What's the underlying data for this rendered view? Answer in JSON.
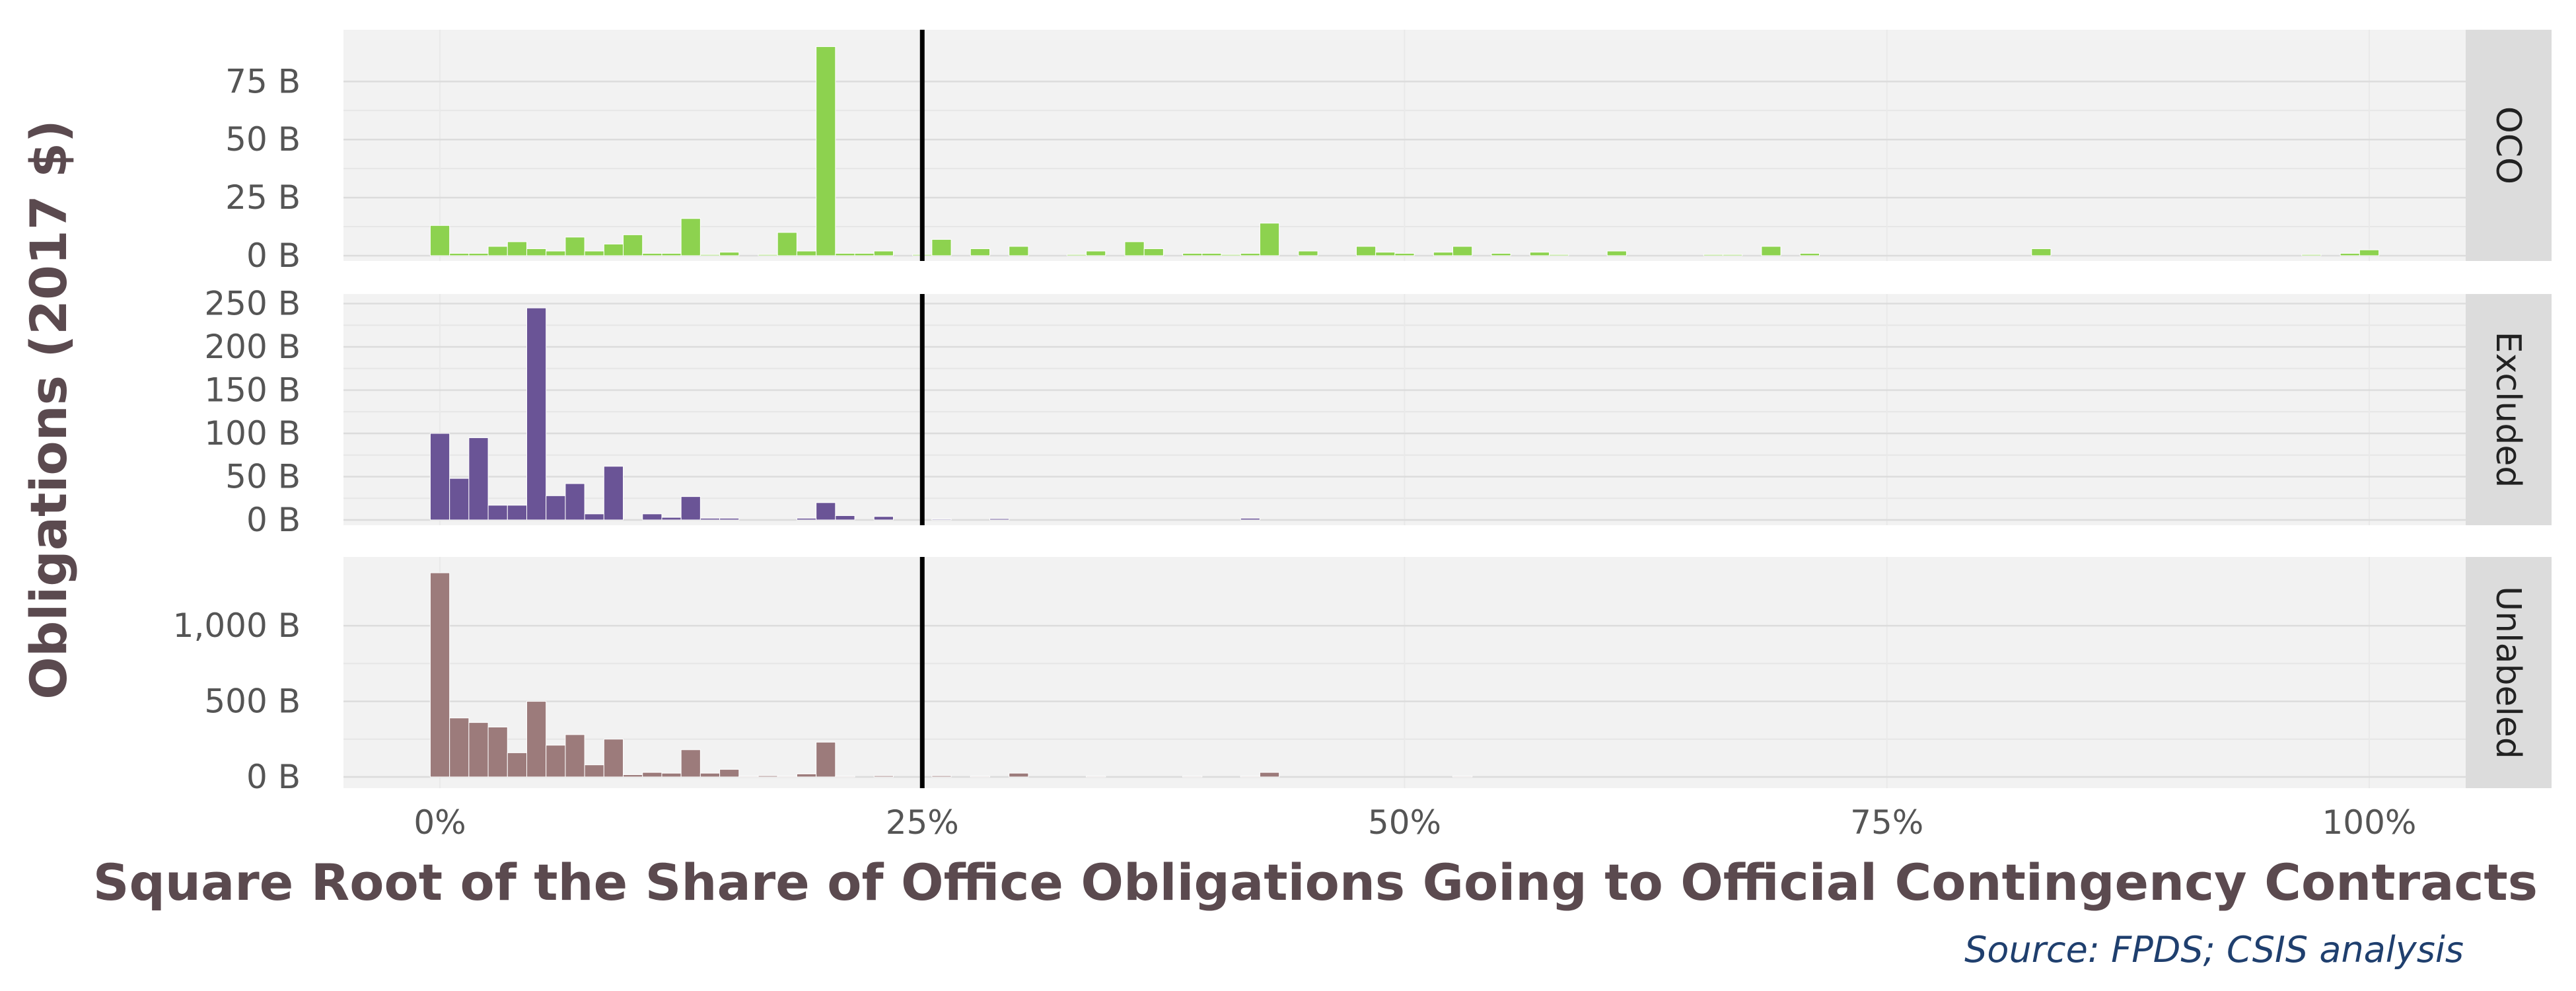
{
  "chart_data": {
    "type": "bar",
    "xlabel": "Square Root of the Share of Office Obligations Going to Official Contingency Contracts",
    "ylabel": "Obligations (2017 $)",
    "source": "Source: FPDS; CSIS analysis",
    "x_ticks": [
      0,
      25,
      50,
      75,
      100
    ],
    "x_tick_labels": [
      "0%",
      "25%",
      "50%",
      "75%",
      "100%"
    ],
    "xlim": [
      -5,
      105
    ],
    "bin_width": 1,
    "reference_line": {
      "x": 25,
      "color": "#000000"
    },
    "grid": true,
    "panels": [
      {
        "name": "OCO",
        "strip_label": "OCO",
        "color": "#8dd24f",
        "ylim": [
          0,
          95
        ],
        "y_ticks": [
          0,
          25,
          50,
          75
        ],
        "y_tick_labels": [
          "0 B",
          "25 B",
          "50 B",
          "75 B"
        ],
        "bars": [
          {
            "x": 0,
            "y": 13
          },
          {
            "x": 1,
            "y": 1
          },
          {
            "x": 2,
            "y": 1
          },
          {
            "x": 3,
            "y": 4
          },
          {
            "x": 4,
            "y": 6
          },
          {
            "x": 5,
            "y": 3
          },
          {
            "x": 6,
            "y": 2
          },
          {
            "x": 7,
            "y": 8
          },
          {
            "x": 8,
            "y": 2
          },
          {
            "x": 9,
            "y": 5
          },
          {
            "x": 10,
            "y": 9
          },
          {
            "x": 11,
            "y": 1
          },
          {
            "x": 12,
            "y": 1
          },
          {
            "x": 13,
            "y": 16
          },
          {
            "x": 14,
            "y": 0.5
          },
          {
            "x": 15,
            "y": 1.5
          },
          {
            "x": 17,
            "y": 0.5
          },
          {
            "x": 18,
            "y": 10
          },
          {
            "x": 19,
            "y": 2
          },
          {
            "x": 20,
            "y": 90
          },
          {
            "x": 21,
            "y": 1
          },
          {
            "x": 22,
            "y": 1
          },
          {
            "x": 23,
            "y": 2
          },
          {
            "x": 25,
            "y": 0.5
          },
          {
            "x": 26,
            "y": 7
          },
          {
            "x": 28,
            "y": 3
          },
          {
            "x": 30,
            "y": 4
          },
          {
            "x": 33,
            "y": 0.5
          },
          {
            "x": 34,
            "y": 2
          },
          {
            "x": 36,
            "y": 6
          },
          {
            "x": 37,
            "y": 3
          },
          {
            "x": 39,
            "y": 1
          },
          {
            "x": 40,
            "y": 1
          },
          {
            "x": 41,
            "y": 0.5
          },
          {
            "x": 42,
            "y": 1
          },
          {
            "x": 43,
            "y": 14
          },
          {
            "x": 45,
            "y": 2
          },
          {
            "x": 48,
            "y": 4
          },
          {
            "x": 49,
            "y": 1.5
          },
          {
            "x": 50,
            "y": 1
          },
          {
            "x": 52,
            "y": 1.5
          },
          {
            "x": 53,
            "y": 4
          },
          {
            "x": 55,
            "y": 1
          },
          {
            "x": 57,
            "y": 1.5
          },
          {
            "x": 58,
            "y": 0.5
          },
          {
            "x": 61,
            "y": 2
          },
          {
            "x": 66,
            "y": 0.5
          },
          {
            "x": 67,
            "y": 0.5
          },
          {
            "x": 69,
            "y": 4
          },
          {
            "x": 71,
            "y": 1
          },
          {
            "x": 83,
            "y": 3
          },
          {
            "x": 97,
            "y": 0.5
          },
          {
            "x": 99,
            "y": 1
          },
          {
            "x": 100,
            "y": 2.5
          }
        ]
      },
      {
        "name": "Excluded",
        "strip_label": "Excluded",
        "color": "#6a5496",
        "ylim": [
          0,
          255
        ],
        "y_ticks": [
          0,
          50,
          100,
          150,
          200,
          250
        ],
        "y_tick_labels": [
          "0 B",
          "50 B",
          "100 B",
          "150 B",
          "200 B",
          "250 B"
        ],
        "bars": [
          {
            "x": 0,
            "y": 100
          },
          {
            "x": 1,
            "y": 48
          },
          {
            "x": 2,
            "y": 95
          },
          {
            "x": 3,
            "y": 17
          },
          {
            "x": 4,
            "y": 17
          },
          {
            "x": 5,
            "y": 245
          },
          {
            "x": 6,
            "y": 28
          },
          {
            "x": 7,
            "y": 42
          },
          {
            "x": 8,
            "y": 7
          },
          {
            "x": 9,
            "y": 62
          },
          {
            "x": 11,
            "y": 7
          },
          {
            "x": 12,
            "y": 3
          },
          {
            "x": 13,
            "y": 27
          },
          {
            "x": 14,
            "y": 2
          },
          {
            "x": 15,
            "y": 2
          },
          {
            "x": 19,
            "y": 2
          },
          {
            "x": 20,
            "y": 20
          },
          {
            "x": 21,
            "y": 5
          },
          {
            "x": 23,
            "y": 4
          },
          {
            "x": 26,
            "y": 1
          },
          {
            "x": 29,
            "y": 1.5
          },
          {
            "x": 42,
            "y": 2
          }
        ]
      },
      {
        "name": "Unlabeled",
        "strip_label": "Unlabeled",
        "color": "#9c7b7b",
        "ylim": [
          0,
          1420
        ],
        "y_ticks": [
          0,
          500,
          1000
        ],
        "y_tick_labels": [
          "0 B",
          "500 B",
          "1,000 B"
        ],
        "bars": [
          {
            "x": 0,
            "y": 1350
          },
          {
            "x": 1,
            "y": 390
          },
          {
            "x": 2,
            "y": 360
          },
          {
            "x": 3,
            "y": 330
          },
          {
            "x": 4,
            "y": 160
          },
          {
            "x": 5,
            "y": 500
          },
          {
            "x": 6,
            "y": 210
          },
          {
            "x": 7,
            "y": 280
          },
          {
            "x": 8,
            "y": 80
          },
          {
            "x": 9,
            "y": 250
          },
          {
            "x": 10,
            "y": 15
          },
          {
            "x": 11,
            "y": 30
          },
          {
            "x": 12,
            "y": 25
          },
          {
            "x": 13,
            "y": 180
          },
          {
            "x": 14,
            "y": 25
          },
          {
            "x": 15,
            "y": 50
          },
          {
            "x": 16,
            "y": 5
          },
          {
            "x": 17,
            "y": 8
          },
          {
            "x": 18,
            "y": 5
          },
          {
            "x": 19,
            "y": 20
          },
          {
            "x": 20,
            "y": 230
          },
          {
            "x": 21,
            "y": 5
          },
          {
            "x": 23,
            "y": 8
          },
          {
            "x": 26,
            "y": 8
          },
          {
            "x": 28,
            "y": 5
          },
          {
            "x": 30,
            "y": 25
          },
          {
            "x": 34,
            "y": 5
          },
          {
            "x": 39,
            "y": 5
          },
          {
            "x": 42,
            "y": 5
          },
          {
            "x": 43,
            "y": 30
          },
          {
            "x": 53,
            "y": 5
          }
        ]
      }
    ]
  }
}
